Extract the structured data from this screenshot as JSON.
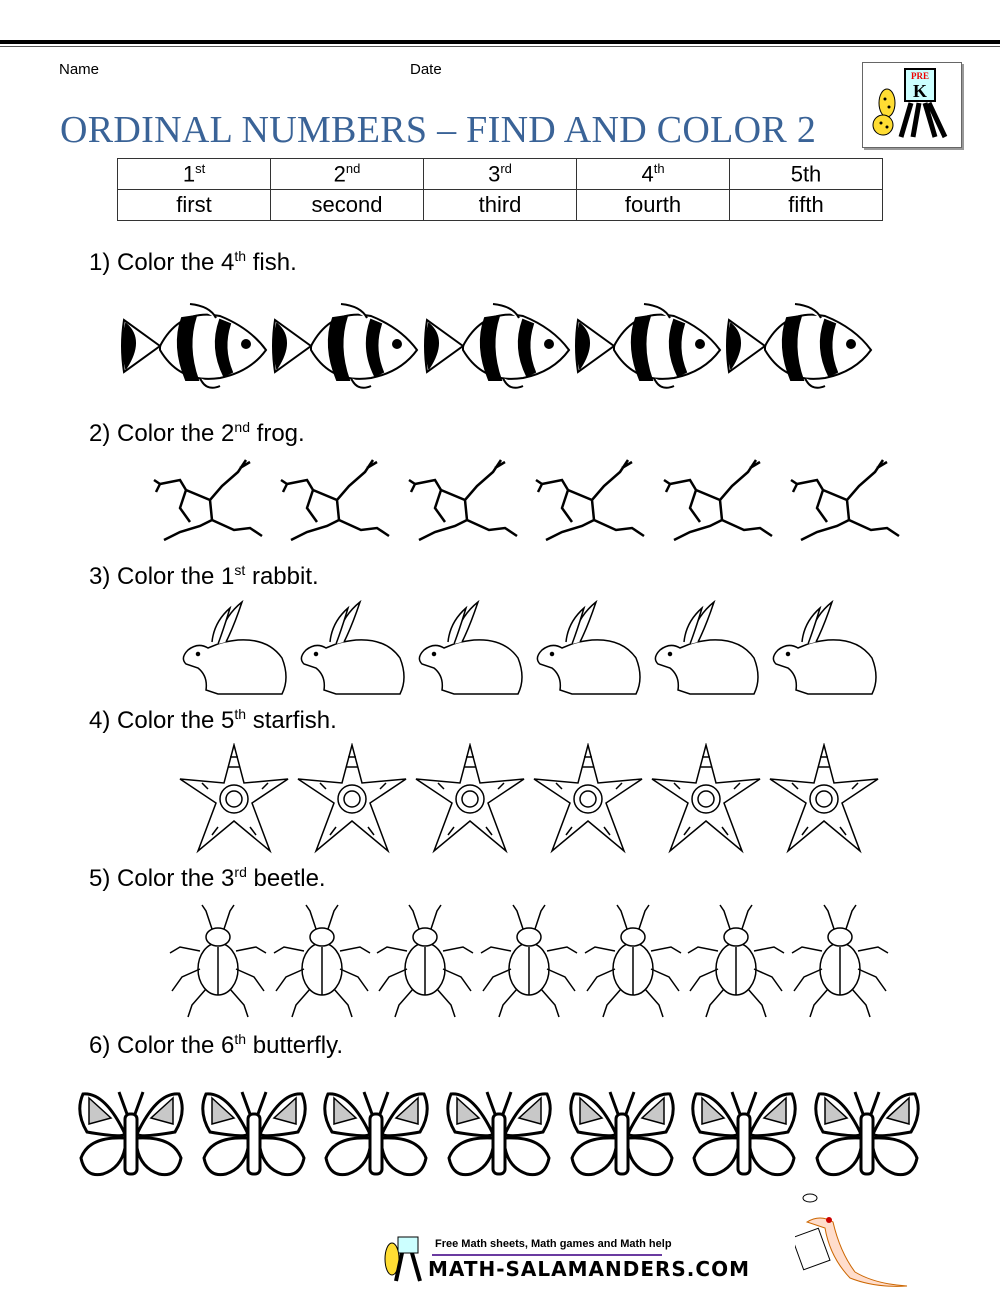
{
  "header": {
    "name_label": "Name",
    "date_label": "Date",
    "title": "ORDINAL NUMBERS – FIND AND COLOR 2",
    "logo_text": "PRE K"
  },
  "table": {
    "numbers": [
      {
        "n": "1",
        "suf": "st"
      },
      {
        "n": "2",
        "suf": "nd"
      },
      {
        "n": "3",
        "suf": "rd"
      },
      {
        "n": "4",
        "suf": "th"
      },
      {
        "n": "5th",
        "suf": ""
      }
    ],
    "words": [
      "first",
      "second",
      "third",
      "fourth",
      "fifth"
    ]
  },
  "questions": [
    {
      "pre": "1) Color the 4",
      "suf": "th",
      "post": " fish.",
      "animal": "fish",
      "count": 5
    },
    {
      "pre": "2) Color the 2",
      "suf": "nd",
      "post": " frog.",
      "animal": "frog",
      "count": 6
    },
    {
      "pre": "3) Color the 1",
      "suf": "st",
      "post": " rabbit.",
      "animal": "rabbit",
      "count": 6
    },
    {
      "pre": "4) Color the 5",
      "suf": "th",
      "post": " starfish.",
      "animal": "starfish",
      "count": 6
    },
    {
      "pre": "5) Color the 3",
      "suf": "rd",
      "post": " beetle.",
      "animal": "beetle",
      "count": 7
    },
    {
      "pre": "6) Color the 6",
      "suf": "th",
      "post": " butterfly.",
      "animal": "butterfly",
      "count": 7
    }
  ],
  "footer": {
    "tagline": "Free Math sheets, Math games and Math help",
    "site": "MATH-SALAMANDERS.COM"
  },
  "colors": {
    "title": "#3a6397",
    "footer_line": "#6a3aa0",
    "butterfly_wing": "#c8c8c8"
  }
}
